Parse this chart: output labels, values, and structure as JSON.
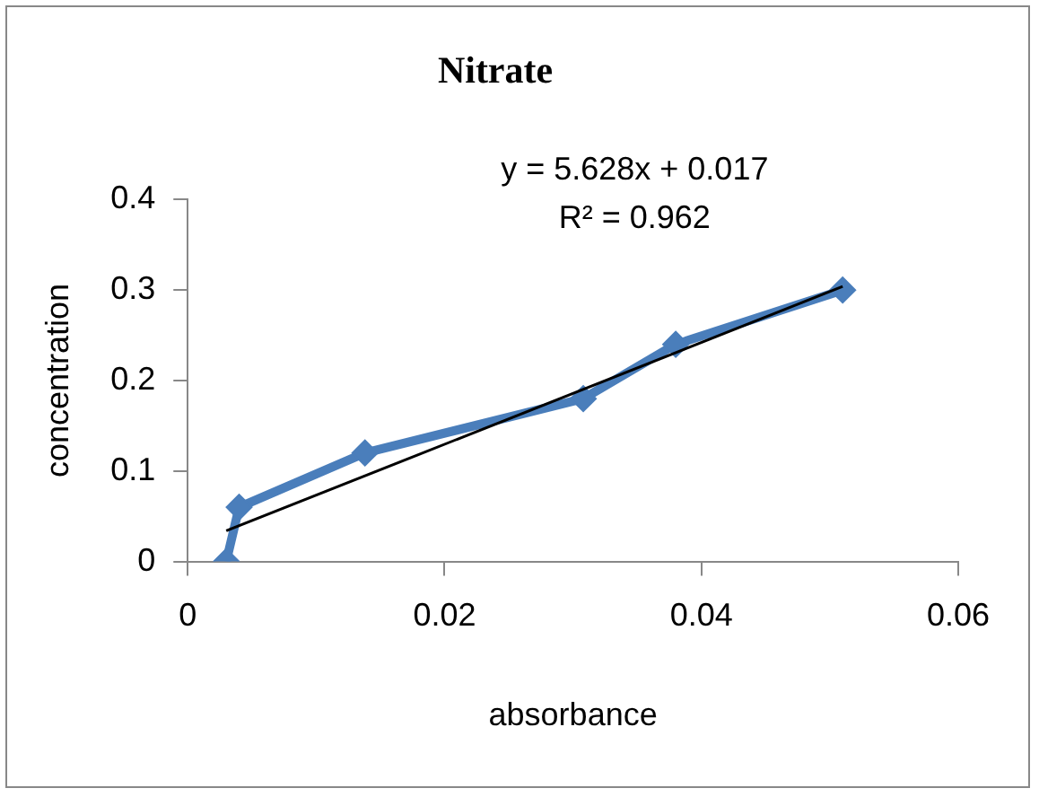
{
  "chart_data": {
    "type": "line",
    "title": "Nitrate",
    "xlabel": "absorbance",
    "ylabel": "concentration",
    "annotations": [
      "y = 5.628x + 0.017",
      "R² = 0.962"
    ],
    "series": [
      {
        "color": "#4a7ebb",
        "x": [
          0.003,
          0.004,
          0.0138,
          0.0308,
          0.038,
          0.051
        ],
        "values": [
          0,
          0.06,
          0.12,
          0.18,
          0.24,
          0.3
        ]
      },
      {
        "type": "line",
        "color": "#000000",
        "marker": "none",
        "x": [
          0.003,
          0.051
        ],
        "values": [
          0.0339,
          0.304
        ]
      }
    ],
    "xlim": [
      0,
      0.06
    ],
    "xticks": [
      0,
      0.02,
      0.04,
      0.06
    ],
    "ylim": [
      0,
      0.4
    ],
    "yticks": [
      0,
      0.1,
      0.2,
      0.3,
      0.4
    ],
    "grid": false,
    "legend": false,
    "marker": "diamond"
  }
}
